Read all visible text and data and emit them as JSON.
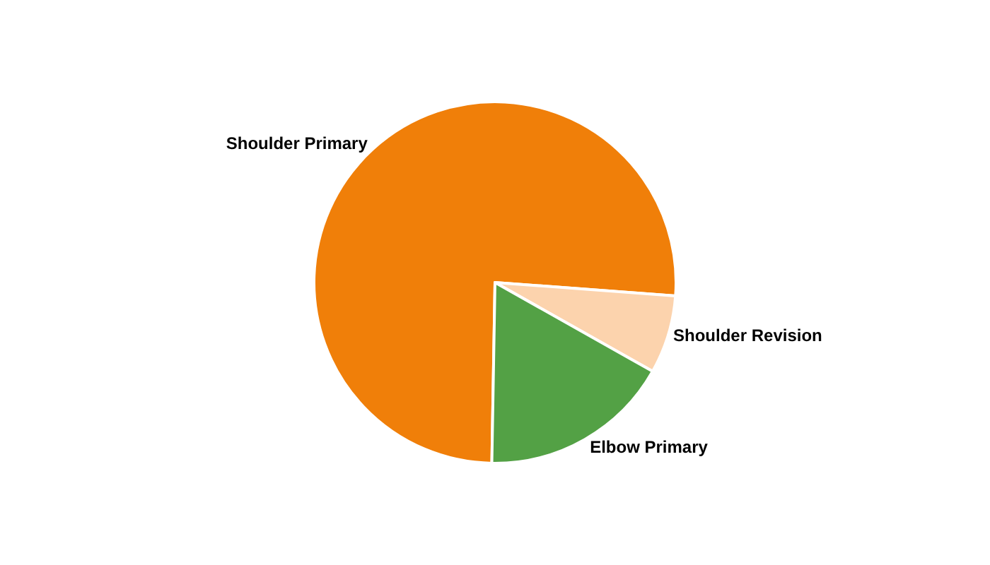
{
  "chart_data": {
    "type": "pie",
    "categories": [
      "Shoulder Primary",
      "Shoulder Revision",
      "Elbow Primary"
    ],
    "values": [
      75.9,
      7.0,
      17.1
    ],
    "colors": [
      "#f07f09",
      "#fcd3ad",
      "#53a145"
    ]
  }
}
